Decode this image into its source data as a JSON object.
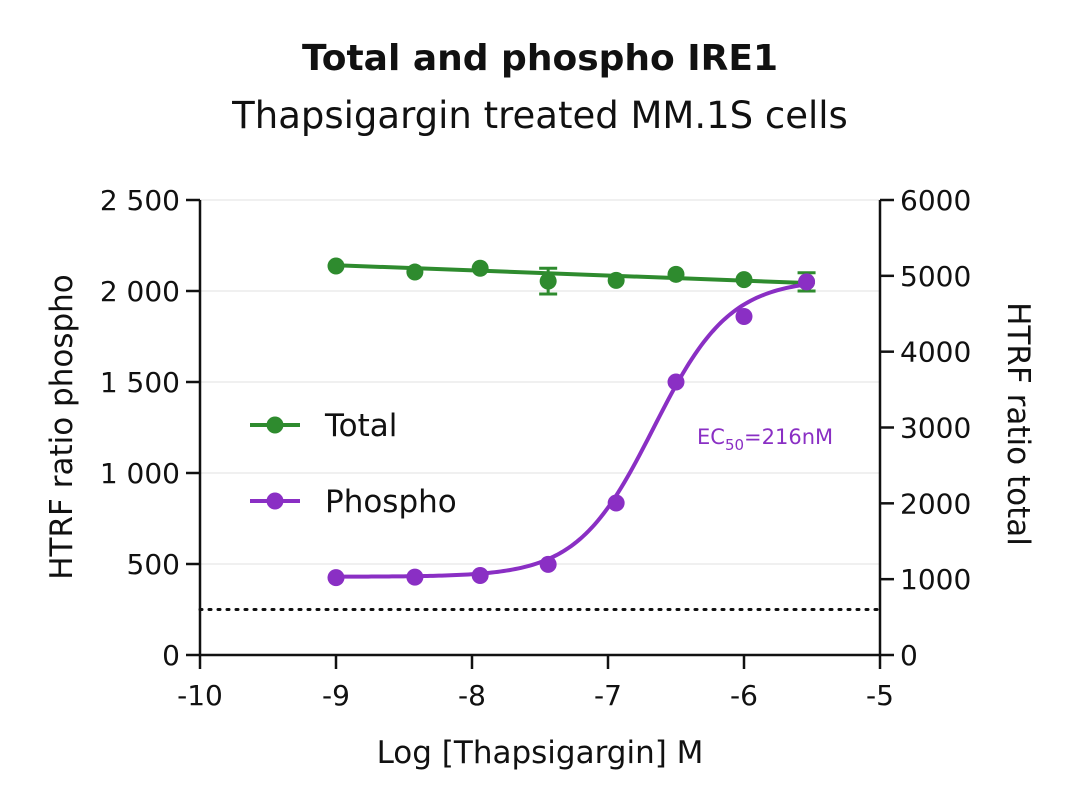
{
  "title": "Total and phospho IRE1",
  "subtitle": "Thapsigargin treated MM.1S cells",
  "chart_data": {
    "type": "line",
    "title": "Total and phospho IRE1",
    "subtitle": "Thapsigargin treated MM.1S cells",
    "xlabel": "Log [Thapsigargin] M",
    "ylabel_left": "HTRF ratio phospho",
    "ylabel_right": "HTRF ratio total",
    "xlim": [
      -10,
      -5
    ],
    "ylim_left": [
      0,
      2500
    ],
    "ylim_right": [
      0,
      6000
    ],
    "x_ticks": [
      "-10",
      "-9",
      "-8",
      "-7",
      "-6",
      "-5"
    ],
    "y_left_ticks": [
      "0",
      "500",
      "1 000",
      "1 500",
      "2 000",
      "2 500"
    ],
    "y_right_ticks": [
      "0",
      "1000",
      "2000",
      "3000",
      "4000",
      "5000",
      "6000"
    ],
    "grid": "horizontal",
    "legend_position": "center-left",
    "series": [
      {
        "name": "Total",
        "axis": "right",
        "color": "#2e8b2e",
        "x": [
          -9.0,
          -8.42,
          -7.94,
          -7.44,
          -6.94,
          -6.5,
          -6.0,
          -5.54
        ],
        "y": [
          5130,
          5050,
          5100,
          4930,
          4940,
          5020,
          4950,
          4920
        ],
        "error": [
          0,
          0,
          0,
          170,
          0,
          0,
          0,
          120
        ],
        "fit": {
          "kind": "linear",
          "y_at_xmin": 5140,
          "y_at_xmax": 4905
        }
      },
      {
        "name": "Phospho",
        "axis": "left",
        "color": "#8a2fc4",
        "x": [
          -9.0,
          -8.42,
          -7.94,
          -7.44,
          -6.94,
          -6.5,
          -6.0,
          -5.54
        ],
        "y": [
          425,
          428,
          437,
          498,
          835,
          1500,
          1860,
          2050
        ],
        "fit": {
          "kind": "sigmoid",
          "bottom": 430,
          "top": 2065,
          "logEC50": -6.665,
          "hill": 1.55
        }
      }
    ],
    "annotation": {
      "text_main": "EC",
      "text_sub": "50",
      "text_tail": "=216nM",
      "color": "#8a2fc4"
    },
    "baseline": {
      "value": 250,
      "axis": "left",
      "style": "dotted"
    }
  }
}
